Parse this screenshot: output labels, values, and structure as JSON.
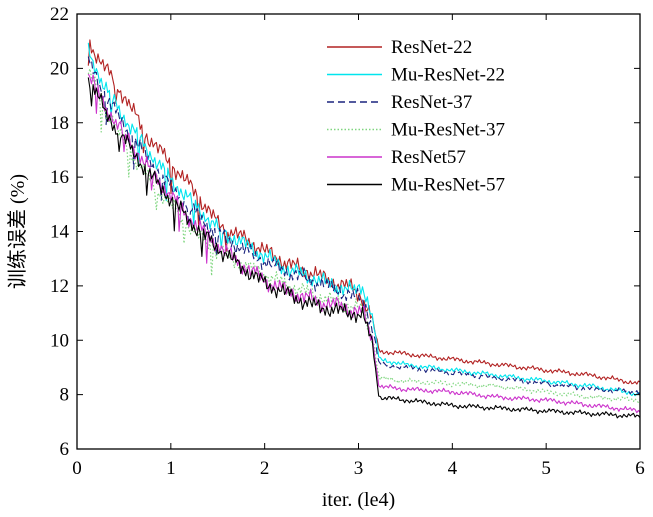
{
  "chart_data": {
    "type": "line",
    "title": "",
    "xlabel": "iter. (le4)",
    "ylabel": "训练误差 (%)",
    "xlim": [
      0,
      6
    ],
    "ylim": [
      6,
      22
    ],
    "xticks": [
      0,
      1,
      2,
      3,
      4,
      5,
      6
    ],
    "yticks": [
      6,
      8,
      10,
      12,
      14,
      16,
      18,
      20,
      22
    ],
    "xtick_labels": [
      "0",
      "1",
      "2",
      "3",
      "4",
      "5",
      "6"
    ],
    "ytick_labels": [
      "6",
      "8",
      "10",
      "12",
      "14",
      "16",
      "18",
      "20",
      "22"
    ],
    "grid": false,
    "legend_position": "top-right",
    "series": [
      {
        "name": "ResNet-22",
        "color": "#b22222",
        "dash": "solid",
        "x": [
          0.12,
          0.3,
          0.5,
          0.75,
          1.0,
          1.25,
          1.5,
          1.75,
          2.0,
          2.25,
          2.5,
          2.75,
          2.95,
          3.05,
          3.15,
          3.22,
          3.5,
          4.0,
          4.5,
          5.0,
          5.5,
          6.0
        ],
        "y": [
          21.0,
          20.0,
          19.0,
          17.5,
          16.5,
          15.5,
          14.3,
          13.8,
          13.3,
          12.8,
          12.5,
          12.1,
          11.9,
          11.5,
          10.7,
          9.6,
          9.5,
          9.3,
          9.1,
          8.9,
          8.7,
          8.4
        ]
      },
      {
        "name": "Mu-ResNet-22",
        "color": "#00e5ee",
        "dash": "solid",
        "x": [
          0.12,
          0.3,
          0.5,
          0.75,
          1.0,
          1.25,
          1.5,
          1.75,
          2.0,
          2.25,
          2.5,
          2.75,
          2.95,
          3.05,
          3.15,
          3.22,
          3.5,
          4.0,
          4.5,
          5.0,
          5.5,
          6.0
        ],
        "y": [
          20.6,
          19.3,
          18.2,
          17.0,
          15.9,
          15.0,
          14.1,
          13.6,
          13.1,
          12.6,
          12.3,
          12.0,
          11.8,
          12.0,
          10.8,
          9.3,
          9.1,
          8.9,
          8.7,
          8.5,
          8.3,
          8.0
        ]
      },
      {
        "name": "ResNet-37",
        "color": "#1a237e",
        "dash": "dashed",
        "x": [
          0.12,
          0.3,
          0.5,
          0.75,
          1.0,
          1.25,
          1.5,
          1.75,
          2.0,
          2.25,
          2.5,
          2.75,
          2.95,
          3.05,
          3.15,
          3.22,
          3.5,
          4.0,
          4.5,
          5.0,
          5.5,
          6.0
        ],
        "y": [
          20.3,
          19.0,
          17.9,
          16.7,
          15.6,
          14.7,
          13.9,
          13.4,
          12.9,
          12.5,
          12.2,
          11.9,
          11.6,
          11.5,
          10.5,
          9.1,
          9.0,
          8.8,
          8.6,
          8.4,
          8.2,
          8.1
        ]
      },
      {
        "name": "Mu-ResNet-37",
        "color": "#7fd67f",
        "dash": "dotted",
        "x": [
          0.12,
          0.3,
          0.5,
          0.75,
          1.0,
          1.25,
          1.5,
          1.75,
          2.0,
          2.25,
          2.5,
          2.75,
          2.95,
          3.05,
          3.15,
          3.22,
          3.5,
          4.0,
          4.5,
          5.0,
          5.5,
          6.0
        ],
        "y": [
          19.9,
          18.5,
          17.3,
          16.0,
          15.0,
          14.0,
          13.3,
          12.8,
          12.4,
          12.0,
          11.7,
          11.4,
          11.2,
          11.1,
          10.1,
          8.6,
          8.5,
          8.4,
          8.3,
          8.1,
          7.9,
          7.8
        ]
      },
      {
        "name": "ResNet57",
        "color": "#cc33cc",
        "dash": "solid",
        "x": [
          0.12,
          0.3,
          0.5,
          0.75,
          1.0,
          1.25,
          1.5,
          1.75,
          2.0,
          2.25,
          2.5,
          2.75,
          2.95,
          3.05,
          3.15,
          3.22,
          3.5,
          4.0,
          4.5,
          5.0,
          5.5,
          6.0
        ],
        "y": [
          19.8,
          18.6,
          17.6,
          16.4,
          15.3,
          14.3,
          13.5,
          12.8,
          12.2,
          11.8,
          11.5,
          11.3,
          11.1,
          11.0,
          10.0,
          8.3,
          8.2,
          8.1,
          7.9,
          7.8,
          7.6,
          7.4
        ]
      },
      {
        "name": "Mu-ResNet-57",
        "color": "#000000",
        "dash": "solid",
        "x": [
          0.12,
          0.3,
          0.5,
          0.75,
          1.0,
          1.25,
          1.5,
          1.75,
          2.0,
          2.25,
          2.5,
          2.75,
          2.95,
          3.05,
          3.15,
          3.22,
          3.5,
          4.0,
          4.5,
          5.0,
          5.5,
          6.0
        ],
        "y": [
          19.7,
          18.4,
          17.4,
          16.2,
          15.2,
          14.2,
          13.4,
          12.7,
          12.1,
          11.7,
          11.3,
          11.1,
          11.0,
          10.9,
          9.8,
          7.9,
          7.8,
          7.6,
          7.5,
          7.4,
          7.3,
          7.2
        ]
      }
    ]
  }
}
